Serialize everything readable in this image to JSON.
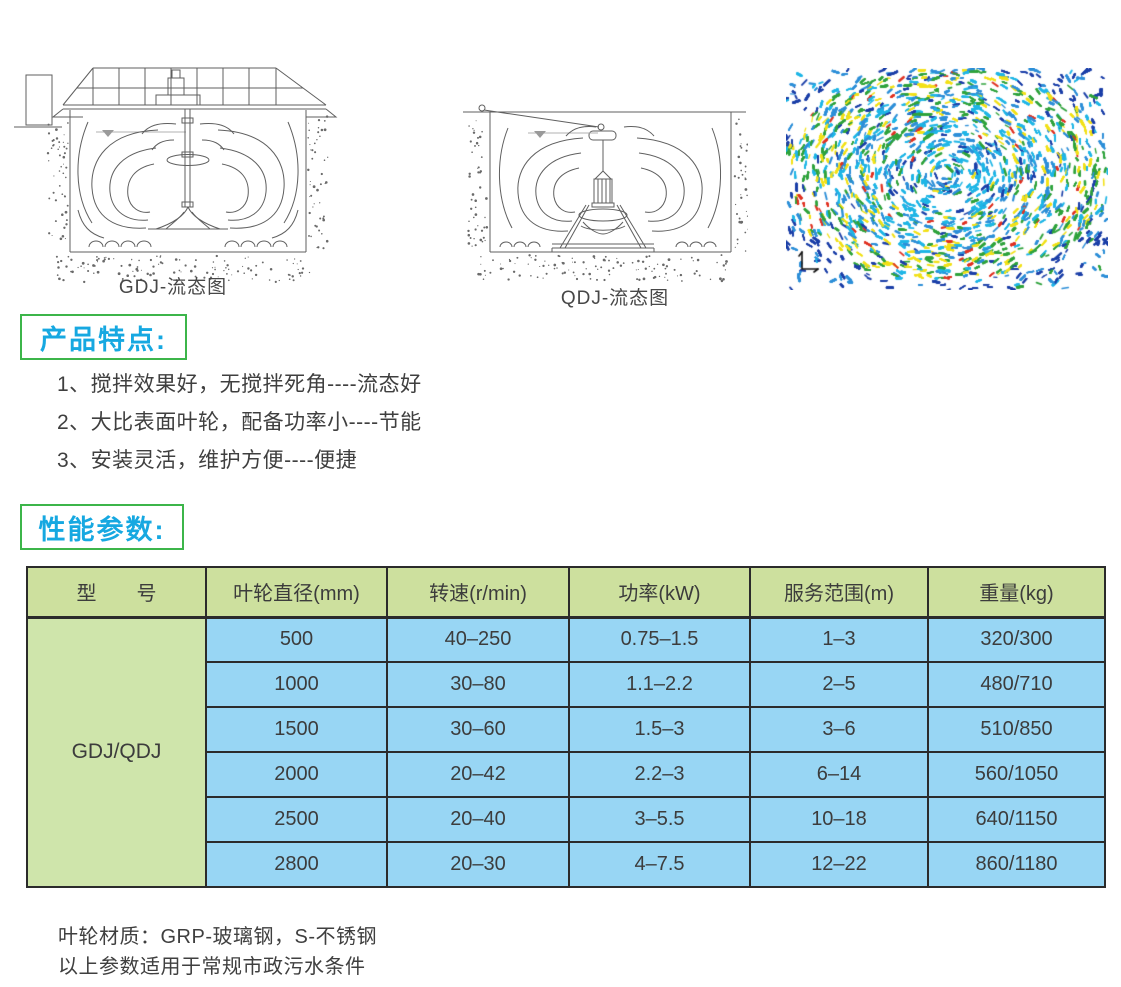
{
  "figures": {
    "gdj": {
      "caption": "GDJ-流态图"
    },
    "qdj": {
      "caption": "QDJ-流态图"
    },
    "cfd": {
      "description": "CFD velocity vector swirl plot",
      "palette": {
        "dark_blue": "#1b3fa8",
        "blue": "#2d8fd8",
        "cyan": "#1fb6e6",
        "green": "#2fa33c",
        "yellow": "#f2e118",
        "red": "#e03222",
        "background": "#ffffff"
      }
    }
  },
  "sections": {
    "features": {
      "title": "产品特点:",
      "items": [
        "1、搅拌效果好，无搅拌死角----流态好",
        "2、大比表面叶轮，配备功率小----节能",
        "3、安装灵活，维护方便----便捷"
      ]
    },
    "performance": {
      "title": "性能参数:",
      "table": {
        "headers": [
          "型　　号",
          "叶轮直径(mm)",
          "转速(r/min)",
          "功率(kW)",
          "服务范围(m)",
          "重量(kg)"
        ],
        "model": "GDJ/QDJ",
        "rows": [
          [
            "500",
            "40–250",
            "0.75–1.5",
            "1–3",
            "320/300"
          ],
          [
            "1000",
            "30–80",
            "1.1–2.2",
            "2–5",
            "480/710"
          ],
          [
            "1500",
            "30–60",
            "1.5–3",
            "3–6",
            "510/850"
          ],
          [
            "2000",
            "20–42",
            "2.2–3",
            "6–14",
            "560/1050"
          ],
          [
            "2500",
            "20–40",
            "3–5.5",
            "10–18",
            "640/1150"
          ],
          [
            "2800",
            "20–30",
            "4–7.5",
            "12–22",
            "860/1180"
          ]
        ]
      },
      "notes": [
        "叶轮材质：GRP-玻璃钢，S-不锈钢",
        "以上参数适用于常规市政污水条件"
      ]
    }
  },
  "colors": {
    "title_blue": "#16a8e1",
    "box_green": "#3cb54a",
    "table_border": "#2b2b2b",
    "header_green": "#cde09e",
    "model_green": "#cfe5ab",
    "cell_blue": "#98d6f4",
    "diagram_stroke": "#5f5f5f"
  }
}
